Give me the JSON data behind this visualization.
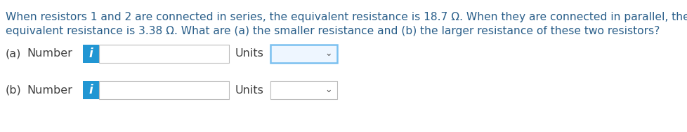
{
  "background_color": "#ffffff",
  "text_color": "#2a5f8a",
  "label_color": "#404040",
  "line1": "When resistors 1 and 2 are connected in series, the equivalent resistance is 18.7 Ω. When they are connected in parallel, the",
  "line2": "equivalent resistance is 3.38 Ω. What are (a) the smaller resistance and (b) the larger resistance of these two resistors?",
  "row_a_label_1": "(a)",
  "row_a_label_2": "Number",
  "row_b_label_1": "(b)",
  "row_b_label_2": "Number",
  "units_label": "Units",
  "info_button_color": "#2196d3",
  "info_button_text": "i",
  "input_box_color": "#ffffff",
  "input_box_border": "#bbbbbb",
  "dropdown_bg_a": "#eef6ff",
  "dropdown_border_a": "#7ac0f0",
  "dropdown_border_b": "#bbbbbb",
  "dropdown_bg_b": "#ffffff",
  "text_fontsize": 11.2,
  "label_fontsize": 11.5,
  "fig_width": 9.79,
  "fig_height": 1.89,
  "dpi": 100
}
